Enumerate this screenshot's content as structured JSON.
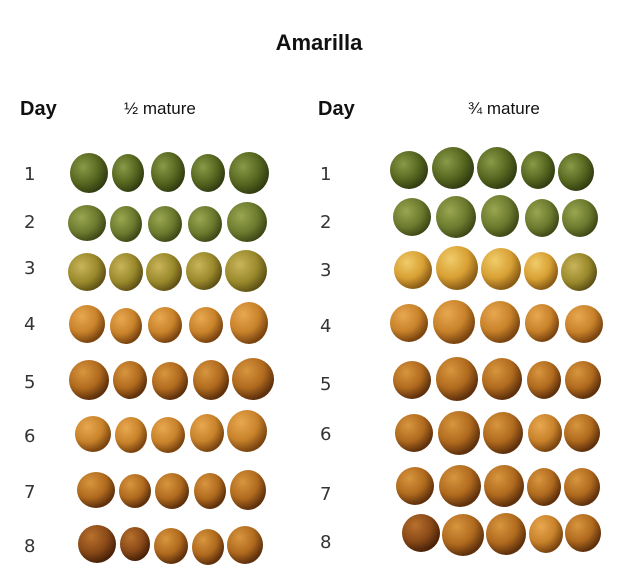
{
  "title": "Amarilla",
  "panels": [
    {
      "day_header": "Day",
      "maturity_label": "½ mature",
      "days": [
        "1",
        "2",
        "3",
        "4",
        "5",
        "6",
        "7",
        "8"
      ]
    },
    {
      "day_header": "Day",
      "maturity_label": "¾ mature",
      "days": [
        "1",
        "2",
        "3",
        "4",
        "5",
        "6",
        "7",
        "8"
      ]
    }
  ],
  "colors": {
    "green_dark": "#4c5a22",
    "green": "#6b7a2e",
    "green_yellow": "#8a8a2a",
    "yellow_orange": "#d4a030",
    "orange": "#d08a2a",
    "orange_brown": "#b86d20",
    "brown": "#8a4a1a"
  }
}
